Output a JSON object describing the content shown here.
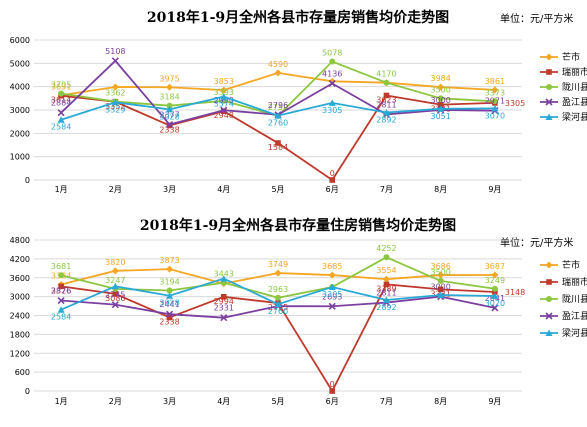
{
  "chart_data": [
    {
      "type": "line",
      "title": "2018年1-9月全州各县市存量房销售均价走势图",
      "unit": "单位：元/平方米",
      "categories": [
        "1月",
        "2月",
        "3月",
        "4月",
        "5月",
        "6月",
        "7月",
        "8月",
        "9月"
      ],
      "ylim": [
        0,
        6000
      ],
      "yticks": [
        "0",
        "1000",
        "2000",
        "3000",
        "4000",
        "5000",
        "6000"
      ],
      "ytick_values": [
        0,
        1000,
        2000,
        3000,
        4000,
        5000,
        6000
      ],
      "grid": true,
      "legend": "right",
      "series": [
        {
          "name": "芒市",
          "color": "#f5a623",
          "marker": "diamond",
          "values": [
            3631,
            3985,
            3975,
            3853,
            4590,
            4229,
            4170,
            3984,
            3861
          ],
          "labels": [
            "3631",
            "",
            "3975",
            "3853",
            "4590",
            "",
            "",
            "3984",
            "3861"
          ]
        },
        {
          "name": "瑞丽市",
          "color": "#c0392b",
          "marker": "square",
          "values": [
            3614,
            3352,
            2338,
            2948,
            1584,
            0,
            3623,
            3231,
            3305
          ],
          "labels": [
            "3614",
            "3352",
            "2338",
            "2948",
            "1584",
            "0",
            "3623",
            "3231",
            "3305"
          ]
        },
        {
          "name": "陇川县",
          "color": "#8dc63f",
          "marker": "circle",
          "values": [
            3705,
            3362,
            3184,
            3393,
            2750,
            5078,
            4170,
            3500,
            3373
          ],
          "labels": [
            "3705",
            "3362",
            "3184",
            "3393",
            "2750",
            "5078",
            "4170",
            "3500",
            "3373"
          ]
        },
        {
          "name": "盈江县",
          "color": "#7b3fa0",
          "marker": "x",
          "values": [
            2884,
            5108,
            2377,
            2990,
            2796,
            4136,
            2811,
            3000,
            2971
          ],
          "labels": [
            "2884",
            "5108",
            "2377",
            "2990",
            "2796",
            "4136",
            "2811",
            "3000",
            "2971"
          ]
        },
        {
          "name": "梁河县",
          "color": "#29a9d6",
          "marker": "triangle",
          "values": [
            2584,
            3329,
            3028,
            3574,
            2760,
            3305,
            2892,
            3051,
            3070
          ],
          "labels": [
            "2584",
            "3329",
            "3028",
            "3574",
            "2760",
            "3305",
            "2892",
            "3051",
            "3070"
          ]
        }
      ]
    },
    {
      "type": "line",
      "title": "2018年1-9月全州各县市存量住房销售均价走势图",
      "unit": "单位：元/平方米",
      "categories": [
        "1月",
        "2月",
        "3月",
        "4月",
        "5月",
        "6月",
        "7月",
        "8月",
        "9月"
      ],
      "ylim": [
        0,
        4800
      ],
      "yticks": [
        "0",
        "600",
        "1200",
        "1800",
        "2400",
        "3000",
        "3600",
        "4200",
        "4800"
      ],
      "ytick_values": [
        0,
        600,
        1200,
        1800,
        2400,
        3000,
        3600,
        4200,
        4800
      ],
      "grid": true,
      "legend": "right",
      "series": [
        {
          "name": "芒市",
          "color": "#f5a623",
          "marker": "diamond",
          "values": [
            3384,
            3820,
            3873,
            3413,
            3749,
            3685,
            3554,
            3686,
            3687
          ],
          "labels": [
            "3384",
            "3820",
            "3873",
            "",
            "3749",
            "3685",
            "3554",
            "3686",
            "3687"
          ]
        },
        {
          "name": "瑞丽市",
          "color": "#c0392b",
          "marker": "square",
          "values": [
            3326,
            3086,
            2338,
            2994,
            2795,
            0,
            3389,
            3231,
            3148
          ],
          "labels": [
            "3326",
            "3086",
            "2338",
            "2994",
            "2795",
            "0",
            "3389",
            "3231",
            "3148"
          ]
        },
        {
          "name": "陇川县",
          "color": "#8dc63f",
          "marker": "circle",
          "values": [
            3681,
            3247,
            3194,
            3443,
            2963,
            3305,
            4252,
            3500,
            3249
          ],
          "labels": [
            "3681",
            "3247",
            "3194",
            "3443",
            "2963",
            "",
            "4252",
            "3500",
            "3249"
          ]
        },
        {
          "name": "盈江县",
          "color": "#7b3fa0",
          "marker": "x",
          "values": [
            2876,
            2745,
            2441,
            2331,
            2699,
            2693,
            2811,
            3000,
            2641
          ],
          "labels": [
            "2876",
            "2745",
            "2441",
            "2331",
            "",
            "2693",
            "2811",
            "3000",
            "2641"
          ]
        },
        {
          "name": "梁河县",
          "color": "#29a9d6",
          "marker": "triangle",
          "values": [
            2584,
            3328,
            3028,
            3574,
            2760,
            3305,
            2892,
            3051,
            3020
          ],
          "labels": [
            "2584",
            "",
            "3028",
            "",
            "2760",
            "3305",
            "2892",
            "",
            "3020"
          ]
        }
      ]
    }
  ]
}
